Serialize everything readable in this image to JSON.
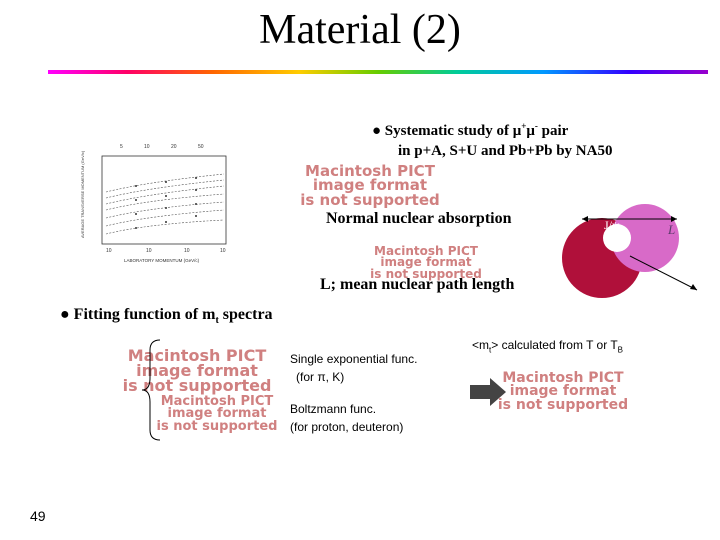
{
  "slide": {
    "title": "Material (2)",
    "page_number": "49"
  },
  "systematic": {
    "line1_prefix": "● Systematic study of μ",
    "line1_sup": "+",
    "line1_mu": "μ",
    "line1_sup2": "-",
    "line1_suffix": " pair",
    "line2": "in p+A, S+U and Pb+Pb by NA50"
  },
  "absorption": {
    "label": "Normal nuclear absorption",
    "jpsi": "J/ψ",
    "L_symbol": "L",
    "definition": "L; mean nuclear path length"
  },
  "fitting": {
    "heading_prefix": "● Fitting function of m",
    "heading_sub": "t",
    "heading_suffix": " spectra",
    "func1_line1": "Single exponential func.",
    "func1_line2": "(for π, K)",
    "func2_line1": "Boltzmann func.",
    "func2_line2": "(for proton, deuteron)",
    "mt_note_prefix": "<m",
    "mt_note_sub": "t",
    "mt_note_mid": "> calculated from T or T",
    "mt_note_sub2": "B"
  },
  "placeholders": {
    "line1": "Macintosh PICT",
    "line2": "image format",
    "line3": "is not supported"
  },
  "graph": {
    "top_ticks": [
      "5",
      "10",
      "20",
      "50"
    ],
    "bottom_ticks": [
      "10",
      "10",
      "10",
      "10"
    ],
    "ylabel": "AVERAGE TRANSVERSE MOMENTUM (GeV/c)",
    "xlabel": "LABORATORY MOMENTUM (GeV/c)"
  },
  "colors": {
    "nucleus_dark": "#b0103a",
    "nucleus_light": "#d86ac8",
    "placeholder_text": "#d08080",
    "arrow_fill": "#444444"
  }
}
